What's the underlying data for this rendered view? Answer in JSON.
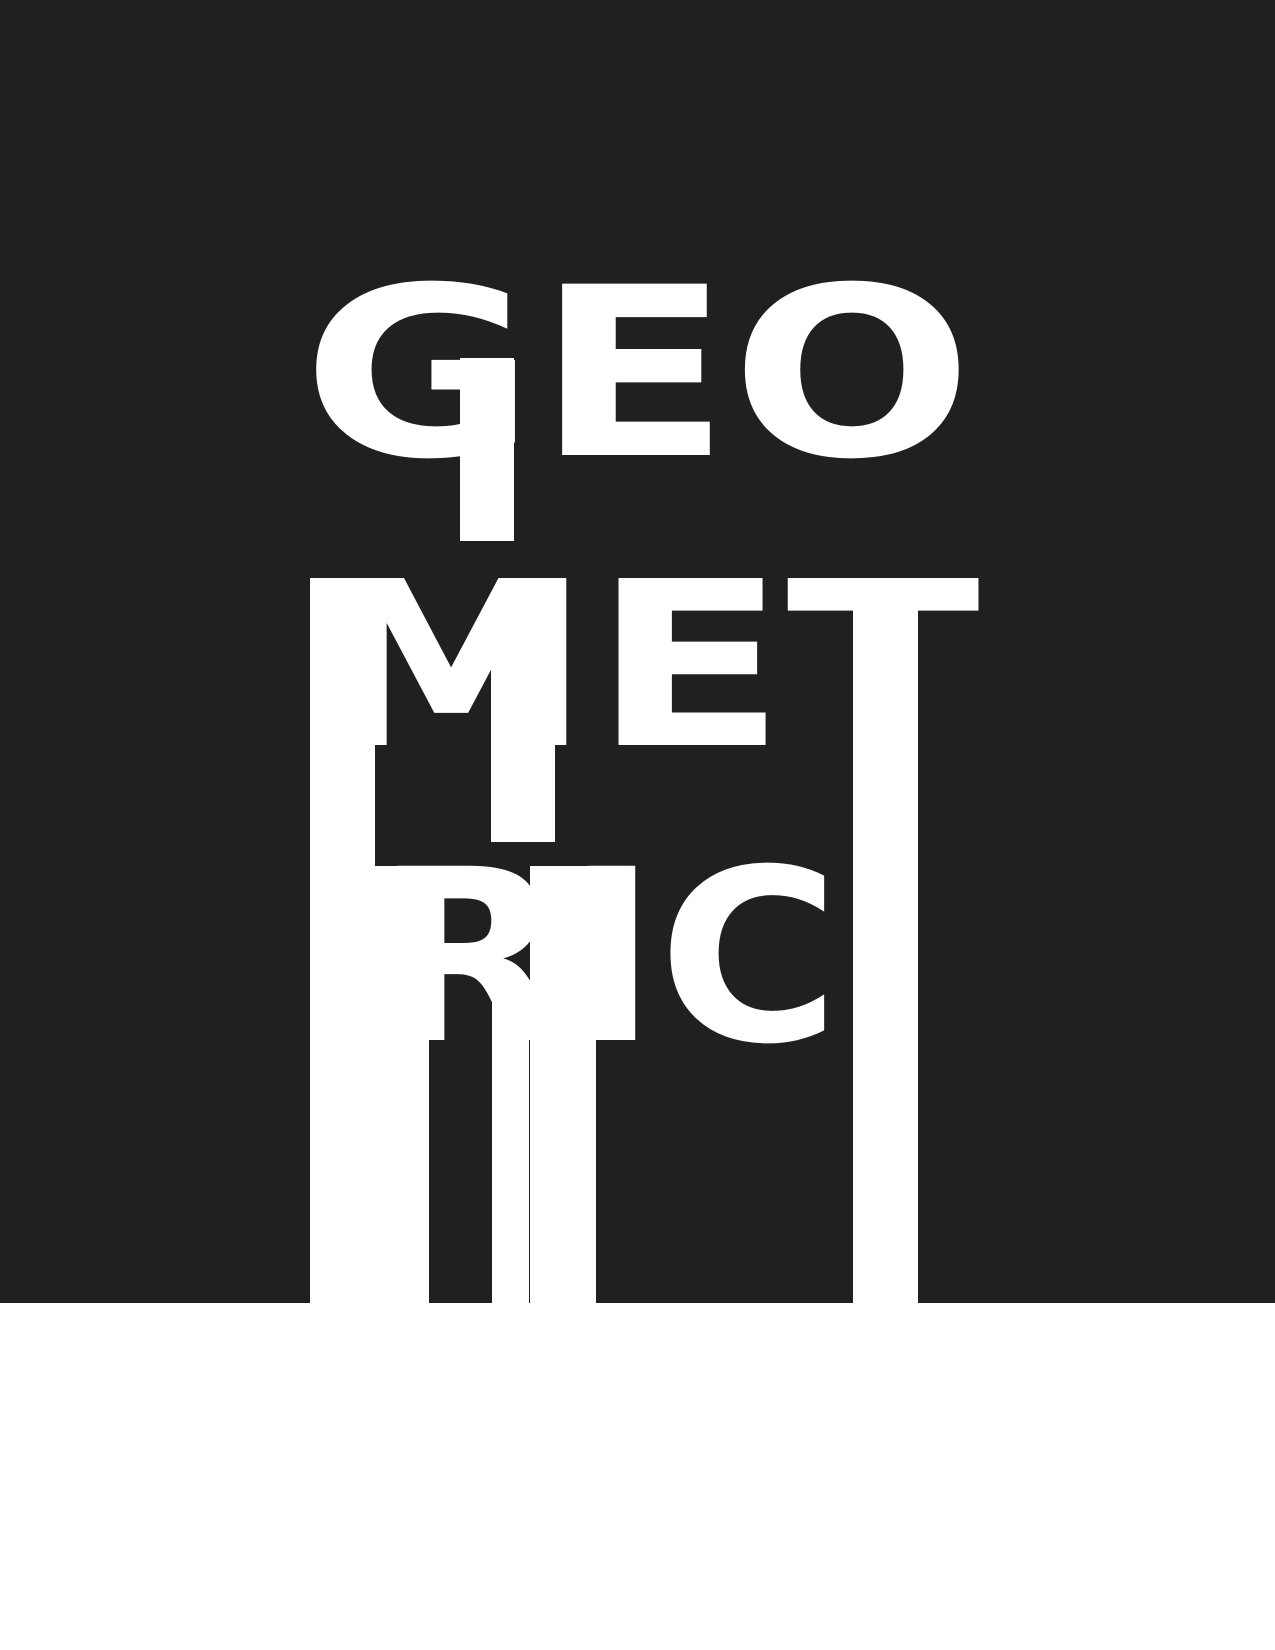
{
  "poster": {
    "lines": [
      "GEO",
      "MET",
      "RIC"
    ]
  }
}
